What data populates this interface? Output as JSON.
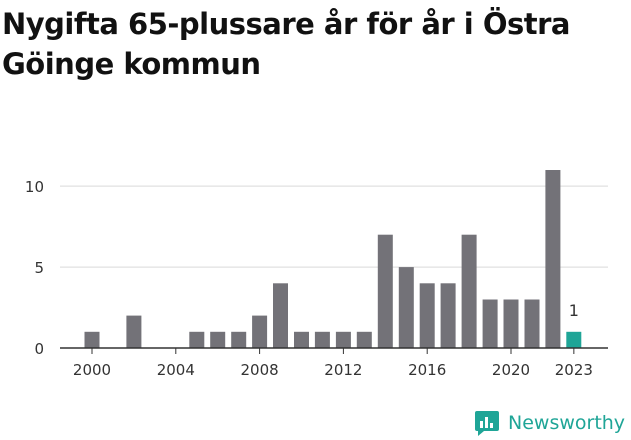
{
  "title": "Nygifta 65-plussare år för år i Östra Göinge kommun",
  "brand": {
    "name": "Newsworthy",
    "icon": "newsworthy-logo-icon"
  },
  "colors": {
    "bar": "#737278",
    "highlight": "#1fa597",
    "grid": "#d9d9d9",
    "axis": "#333333",
    "text": "#333333"
  },
  "chart_data": {
    "type": "bar",
    "title": "Nygifta 65-plussare år för år i Östra Göinge kommun",
    "xlabel": "",
    "ylabel": "",
    "x": [
      2000,
      2001,
      2002,
      2003,
      2004,
      2005,
      2006,
      2007,
      2008,
      2009,
      2010,
      2011,
      2012,
      2013,
      2014,
      2015,
      2016,
      2017,
      2018,
      2019,
      2020,
      2021,
      2022,
      2023
    ],
    "values": [
      1,
      0,
      2,
      0,
      0,
      1,
      1,
      1,
      2,
      4,
      1,
      1,
      1,
      1,
      7,
      5,
      4,
      4,
      7,
      3,
      3,
      3,
      11,
      1
    ],
    "x_ticks": [
      "2000",
      "2004",
      "2008",
      "2012",
      "2016",
      "2020",
      "2023"
    ],
    "y_ticks": [
      "0",
      "5",
      "10"
    ],
    "ylim": [
      0,
      11
    ],
    "highlight": {
      "x": 2023,
      "label": "1"
    },
    "grid": true
  }
}
